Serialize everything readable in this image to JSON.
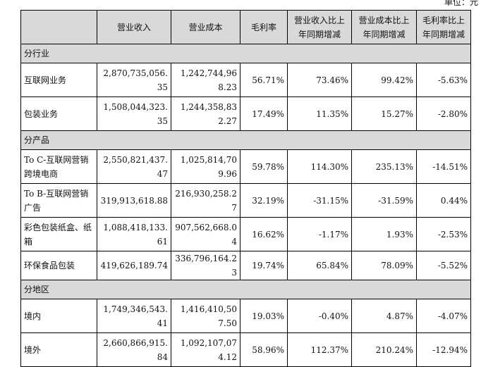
{
  "unit_label": "单位：元",
  "headers": [
    "",
    "营业收入",
    "营业成本",
    "毛利率",
    "营业收入比上年同期增减",
    "营业成本比上年同期增减",
    "毛利率比上年同期增减"
  ],
  "sections": [
    {
      "title": "分行业",
      "rows": [
        {
          "name": "互联网业务",
          "revenue": "2,870,735,056.35",
          "cost": "1,242,744,968.23",
          "margin": "56.71%",
          "rev_change": "73.46%",
          "cost_change": "99.42%",
          "margin_change": "-5.63%"
        },
        {
          "name": "包装业务",
          "revenue": "1,508,044,323.35",
          "cost": "1,244,358,832.27",
          "margin": "17.49%",
          "rev_change": "11.35%",
          "cost_change": "15.27%",
          "margin_change": "-2.80%"
        }
      ]
    },
    {
      "title": "分产品",
      "rows": [
        {
          "name": "To C-互联网营销跨境电商",
          "revenue": "2,550,821,437.47",
          "cost": "1,025,814,709.96",
          "margin": "59.78%",
          "rev_change": "114.30%",
          "cost_change": "235.13%",
          "margin_change": "-14.51%"
        },
        {
          "name": "To B-互联网营销广告",
          "revenue": "319,913,618.88",
          "cost": "216,930,258.27",
          "margin": "32.19%",
          "rev_change": "-31.15%",
          "cost_change": "-31.59%",
          "margin_change": "0.44%"
        },
        {
          "name": "彩色包装纸盒、纸箱",
          "revenue": "1,088,418,133.61",
          "cost": "907,562,668.04",
          "margin": "16.62%",
          "rev_change": "-1.17%",
          "cost_change": "1.93%",
          "margin_change": "-2.53%"
        },
        {
          "name": "环保食品包装",
          "revenue": "419,626,189.74",
          "cost": "336,796,164.23",
          "margin": "19.74%",
          "rev_change": "65.84%",
          "cost_change": "78.09%",
          "margin_change": "-5.52%"
        }
      ]
    },
    {
      "title": "分地区",
      "rows": [
        {
          "name": "境内",
          "revenue": "1,749,346,543.41",
          "cost": "1,416,410,507.50",
          "margin": "19.03%",
          "rev_change": "-0.40%",
          "cost_change": "4.87%",
          "margin_change": "-4.07%"
        },
        {
          "name": "境外",
          "revenue": "2,660,866,915.84",
          "cost": "1,092,107,074.12",
          "margin": "58.96%",
          "rev_change": "112.37%",
          "cost_change": "210.24%",
          "margin_change": "-12.94%"
        }
      ]
    }
  ]
}
